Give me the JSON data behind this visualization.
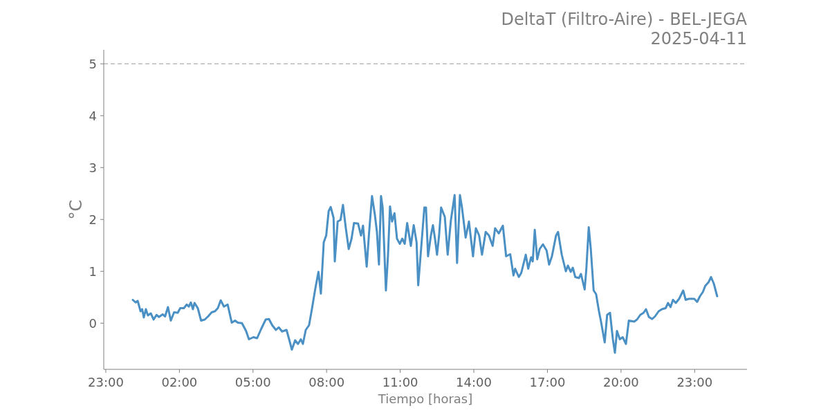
{
  "chart_data": {
    "type": "line",
    "title": "DeltaT (Filtro-Aire) - BEL-JEGA\n2025-04-11",
    "xlabel": "Tiempo [horas]",
    "ylabel": "°C",
    "xlim": [
      "2025-04-10T22:55",
      "2025-04-12T01:08"
    ],
    "ylim": [
      -0.89,
      5.27
    ],
    "xticks": [
      {
        "value": "2025-04-10T23:00",
        "label": "23:00"
      },
      {
        "value": "2025-04-11T02:00",
        "label": "02:00"
      },
      {
        "value": "2025-04-11T05:00",
        "label": "05:00"
      },
      {
        "value": "2025-04-11T08:00",
        "label": "08:00"
      },
      {
        "value": "2025-04-11T11:00",
        "label": "11:00"
      },
      {
        "value": "2025-04-11T14:00",
        "label": "14:00"
      },
      {
        "value": "2025-04-11T17:00",
        "label": "17:00"
      },
      {
        "value": "2025-04-11T20:00",
        "label": "20:00"
      },
      {
        "value": "2025-04-11T23:00",
        "label": "23:00"
      }
    ],
    "yticks": [
      0,
      1,
      2,
      3,
      4,
      5
    ],
    "ref_lines": [
      {
        "axis": "y",
        "value": 5,
        "color": "#bbbbbb",
        "line_style": "dashed"
      }
    ],
    "series": [
      {
        "color": "#4a90c4",
        "x": [
          "2025-04-11T00:06",
          "2025-04-11T00:13",
          "2025-04-11T00:18",
          "2025-04-11T00:25",
          "2025-04-11T00:29",
          "2025-04-11T00:33",
          "2025-04-11T00:38",
          "2025-04-11T00:43",
          "2025-04-11T00:50",
          "2025-04-11T00:57",
          "2025-04-11T01:04",
          "2025-04-11T01:10",
          "2025-04-11T01:19",
          "2025-04-11T01:25",
          "2025-04-11T01:32",
          "2025-04-11T01:39",
          "2025-04-11T01:47",
          "2025-04-11T01:56",
          "2025-04-11T02:02",
          "2025-04-11T02:11",
          "2025-04-11T02:18",
          "2025-04-11T02:23",
          "2025-04-11T02:28",
          "2025-04-11T02:33",
          "2025-04-11T02:37",
          "2025-04-11T02:45",
          "2025-04-11T02:53",
          "2025-04-11T03:02",
          "2025-04-11T03:10",
          "2025-04-11T03:19",
          "2025-04-11T03:27",
          "2025-04-11T03:34",
          "2025-04-11T03:41",
          "2025-04-11T03:49",
          "2025-04-11T03:58",
          "2025-04-11T04:08",
          "2025-04-11T04:16",
          "2025-04-11T04:23",
          "2025-04-11T04:33",
          "2025-04-11T04:43",
          "2025-04-11T04:50",
          "2025-04-11T05:01",
          "2025-04-11T05:10",
          "2025-04-11T05:20",
          "2025-04-11T05:31",
          "2025-04-11T05:39",
          "2025-04-11T05:47",
          "2025-04-11T05:56",
          "2025-04-11T06:03",
          "2025-04-11T06:11",
          "2025-04-11T06:22",
          "2025-04-11T06:30",
          "2025-04-11T06:35",
          "2025-04-11T06:43",
          "2025-04-11T06:50",
          "2025-04-11T06:57",
          "2025-04-11T07:02",
          "2025-04-11T07:09",
          "2025-04-11T07:17",
          "2025-04-11T07:24",
          "2025-04-11T07:32",
          "2025-04-11T07:40",
          "2025-04-11T07:46",
          "2025-04-11T07:53",
          "2025-04-11T07:59",
          "2025-04-11T08:05",
          "2025-04-11T08:10",
          "2025-04-11T08:17",
          "2025-04-11T08:20",
          "2025-04-11T08:27",
          "2025-04-11T08:34",
          "2025-04-11T08:40",
          "2025-04-11T08:47",
          "2025-04-11T08:54",
          "2025-04-11T09:01",
          "2025-04-11T09:07",
          "2025-04-11T09:17",
          "2025-04-11T09:24",
          "2025-04-11T09:29",
          "2025-04-11T09:38",
          "2025-04-11T09:44",
          "2025-04-11T09:51",
          "2025-04-11T09:58",
          "2025-04-11T10:03",
          "2025-04-11T10:08",
          "2025-04-11T10:13",
          "2025-04-11T10:17",
          "2025-04-11T10:25",
          "2025-04-11T10:30",
          "2025-04-11T10:35",
          "2025-04-11T10:40",
          "2025-04-11T10:46",
          "2025-04-11T10:52",
          "2025-04-11T10:59",
          "2025-04-11T11:05",
          "2025-04-11T11:11",
          "2025-04-11T11:17",
          "2025-04-11T11:26",
          "2025-04-11T11:33",
          "2025-04-11T11:40",
          "2025-04-11T11:44",
          "2025-04-11T11:53",
          "2025-04-11T11:59",
          "2025-04-11T12:03",
          "2025-04-11T12:08",
          "2025-04-11T12:15",
          "2025-04-11T12:20",
          "2025-04-11T12:25",
          "2025-04-11T12:30",
          "2025-04-11T12:35",
          "2025-04-11T12:40",
          "2025-04-11T12:49",
          "2025-04-11T12:56",
          "2025-04-11T13:04",
          "2025-04-11T13:13",
          "2025-04-11T13:19",
          "2025-04-11T13:26",
          "2025-04-11T13:31",
          "2025-04-11T13:40",
          "2025-04-11T13:48",
          "2025-04-11T13:58",
          "2025-04-11T14:05",
          "2025-04-11T14:13",
          "2025-04-11T14:20",
          "2025-04-11T14:29",
          "2025-04-11T14:37",
          "2025-04-11T14:46",
          "2025-04-11T14:52",
          "2025-04-11T15:01",
          "2025-04-11T15:11",
          "2025-04-11T15:19",
          "2025-04-11T15:29",
          "2025-04-11T15:37",
          "2025-04-11T15:41",
          "2025-04-11T15:50",
          "2025-04-11T15:56",
          "2025-04-11T16:02",
          "2025-04-11T16:07",
          "2025-04-11T16:13",
          "2025-04-11T16:20",
          "2025-04-11T16:24",
          "2025-04-11T16:29",
          "2025-04-11T16:35",
          "2025-04-11T16:41",
          "2025-04-11T16:49",
          "2025-04-11T16:58",
          "2025-04-11T17:04",
          "2025-04-11T17:11",
          "2025-04-11T17:21",
          "2025-04-11T17:26",
          "2025-04-11T17:35",
          "2025-04-11T17:45",
          "2025-04-11T17:50",
          "2025-04-11T17:57",
          "2025-04-11T18:02",
          "2025-04-11T18:08",
          "2025-04-11T18:17",
          "2025-04-11T18:22",
          "2025-04-11T18:31",
          "2025-04-11T18:35",
          "2025-04-11T18:41",
          "2025-04-11T18:46",
          "2025-04-11T18:53",
          "2025-04-11T18:59",
          "2025-04-11T19:06",
          "2025-04-11T19:11",
          "2025-04-11T19:20",
          "2025-04-11T19:26",
          "2025-04-11T19:33",
          "2025-04-11T19:40",
          "2025-04-11T19:45",
          "2025-04-11T19:50",
          "2025-04-11T19:57",
          "2025-04-11T20:04",
          "2025-04-11T20:12",
          "2025-04-11T20:19",
          "2025-04-11T20:26",
          "2025-04-11T20:32",
          "2025-04-11T20:39",
          "2025-04-11T20:47",
          "2025-04-11T20:55",
          "2025-04-11T21:01",
          "2025-04-11T21:08",
          "2025-04-11T21:16",
          "2025-04-11T21:23",
          "2025-04-11T21:32",
          "2025-04-11T21:40",
          "2025-04-11T21:49",
          "2025-04-11T21:55",
          "2025-04-11T22:01",
          "2025-04-11T22:07",
          "2025-04-11T22:14",
          "2025-04-11T22:22",
          "2025-04-11T22:32",
          "2025-04-11T22:38",
          "2025-04-11T22:46",
          "2025-04-11T22:53",
          "2025-04-11T22:59",
          "2025-04-11T23:06",
          "2025-04-11T23:13",
          "2025-04-11T23:20",
          "2025-04-11T23:26",
          "2025-04-11T23:34",
          "2025-04-11T23:40",
          "2025-04-11T23:47",
          "2025-04-11T23:55"
        ],
        "values": [
          0.45,
          0.4,
          0.43,
          0.23,
          0.27,
          0.11,
          0.27,
          0.15,
          0.19,
          0.07,
          0.16,
          0.12,
          0.17,
          0.13,
          0.31,
          0.05,
          0.21,
          0.2,
          0.29,
          0.29,
          0.36,
          0.32,
          0.4,
          0.27,
          0.39,
          0.29,
          0.05,
          0.07,
          0.13,
          0.21,
          0.23,
          0.29,
          0.44,
          0.32,
          0.36,
          0.01,
          0.05,
          0.01,
          0.0,
          -0.15,
          -0.31,
          -0.27,
          -0.29,
          -0.11,
          0.07,
          0.08,
          -0.04,
          -0.13,
          -0.08,
          -0.16,
          -0.13,
          -0.36,
          -0.51,
          -0.33,
          -0.4,
          -0.31,
          -0.4,
          -0.13,
          -0.04,
          0.27,
          0.65,
          0.99,
          0.57,
          1.56,
          1.69,
          2.16,
          2.24,
          2.03,
          1.19,
          1.96,
          1.99,
          2.28,
          1.83,
          1.43,
          1.63,
          1.93,
          1.92,
          1.69,
          1.88,
          1.09,
          1.76,
          2.45,
          2.09,
          1.76,
          1.13,
          2.45,
          2.23,
          0.63,
          1.29,
          2.25,
          1.96,
          2.12,
          1.63,
          1.53,
          1.63,
          1.53,
          1.93,
          1.49,
          1.89,
          1.56,
          0.73,
          1.63,
          2.23,
          2.23,
          1.29,
          1.69,
          1.89,
          1.63,
          1.32,
          1.69,
          2.23,
          2.05,
          1.32,
          1.99,
          2.47,
          1.16,
          2.47,
          2.23,
          1.65,
          1.96,
          1.29,
          1.83,
          1.69,
          1.32,
          1.76,
          1.69,
          1.49,
          1.83,
          1.73,
          1.88,
          1.29,
          1.33,
          0.92,
          1.05,
          0.89,
          0.97,
          1.16,
          1.32,
          1.05,
          1.27,
          1.19,
          1.8,
          1.23,
          1.43,
          1.52,
          1.4,
          1.13,
          1.29,
          1.69,
          1.76,
          1.32,
          1.0,
          1.11,
          0.99,
          1.07,
          0.89,
          0.87,
          0.95,
          0.65,
          1.03,
          1.85,
          1.43,
          0.63,
          0.56,
          0.23,
          0.03,
          -0.37,
          0.16,
          0.2,
          -0.31,
          -0.57,
          -0.15,
          -0.31,
          -0.27,
          -0.4,
          0.05,
          0.04,
          0.03,
          0.07,
          0.16,
          0.2,
          0.27,
          0.12,
          0.08,
          0.13,
          0.23,
          0.27,
          0.29,
          0.39,
          0.31,
          0.45,
          0.39,
          0.47,
          0.63,
          0.45,
          0.47,
          0.47,
          0.47,
          0.41,
          0.52,
          0.6,
          0.72,
          0.79,
          0.89,
          0.76,
          0.52
        ]
      }
    ]
  }
}
